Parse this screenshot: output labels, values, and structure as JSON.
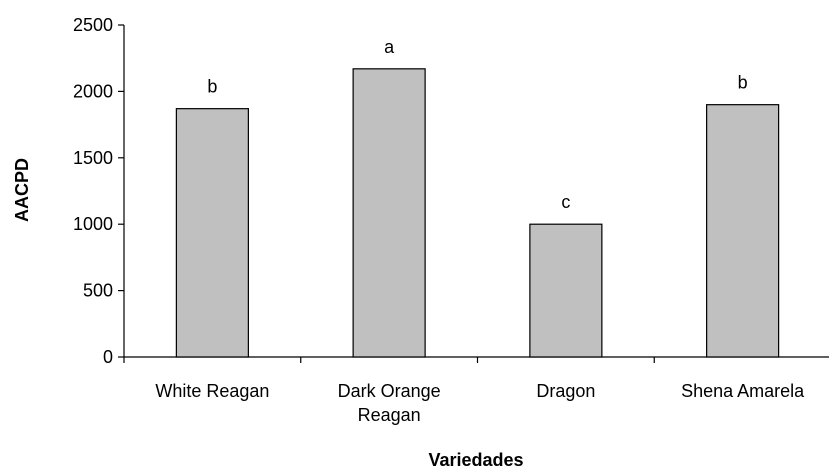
{
  "chart_data": {
    "type": "bar",
    "categories": [
      [
        "White Reagan"
      ],
      [
        "Dark Orange",
        "Reagan"
      ],
      [
        "Dragon"
      ],
      [
        "Shena Amarela"
      ]
    ],
    "values": [
      1870,
      2170,
      1000,
      1900
    ],
    "bar_labels": [
      "b",
      "a",
      "c",
      "b"
    ],
    "xlabel": "Variedades",
    "ylabel": "AACPD",
    "ylim": [
      0,
      2500
    ],
    "yticks": [
      0,
      500,
      1000,
      1500,
      2000,
      2500
    ],
    "grid": false,
    "bar_color": "#c0c0c0"
  }
}
